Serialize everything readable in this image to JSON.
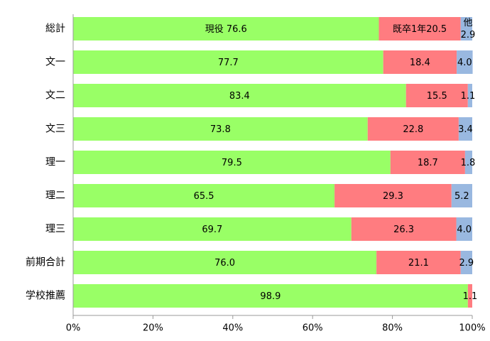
{
  "chart_data": {
    "type": "bar",
    "orientation": "horizontal",
    "stacked": "percent",
    "categories": [
      "総計",
      "文一",
      "文二",
      "文三",
      "理一",
      "理二",
      "理三",
      "前期合計",
      "学校推薦"
    ],
    "series": [
      {
        "name": "現役",
        "color": "#99ff66",
        "values": [
          76.6,
          77.7,
          83.4,
          73.8,
          79.5,
          65.5,
          69.7,
          76.0,
          98.9
        ]
      },
      {
        "name": "既卒1年",
        "color": "#ff7c80",
        "values": [
          20.5,
          18.4,
          15.5,
          22.8,
          18.7,
          29.3,
          26.3,
          21.1,
          1.1
        ]
      },
      {
        "name": "他",
        "color": "#99b8e0",
        "values": [
          2.9,
          4.0,
          1.1,
          3.4,
          1.8,
          5.2,
          4.0,
          2.9,
          0
        ]
      }
    ],
    "value_labels": [
      [
        "現役 76.6",
        "既卒1年20.5",
        "他 2.9"
      ],
      [
        "77.7",
        "18.4",
        "4.0"
      ],
      [
        "83.4",
        "15.5",
        "1.1"
      ],
      [
        "73.8",
        "22.8",
        "3.4"
      ],
      [
        "79.5",
        "18.7",
        "1.8"
      ],
      [
        "65.5",
        "29.3",
        "5.2"
      ],
      [
        "69.7",
        "26.3",
        "4.0"
      ],
      [
        "76.0",
        "21.1",
        "2.9"
      ],
      [
        "98.9",
        "1.1",
        ""
      ]
    ],
    "x_ticks": [
      "0%",
      "20%",
      "40%",
      "60%",
      "80%",
      "100%"
    ],
    "xlim": [
      0,
      100
    ],
    "grid": false,
    "legend": "none"
  }
}
